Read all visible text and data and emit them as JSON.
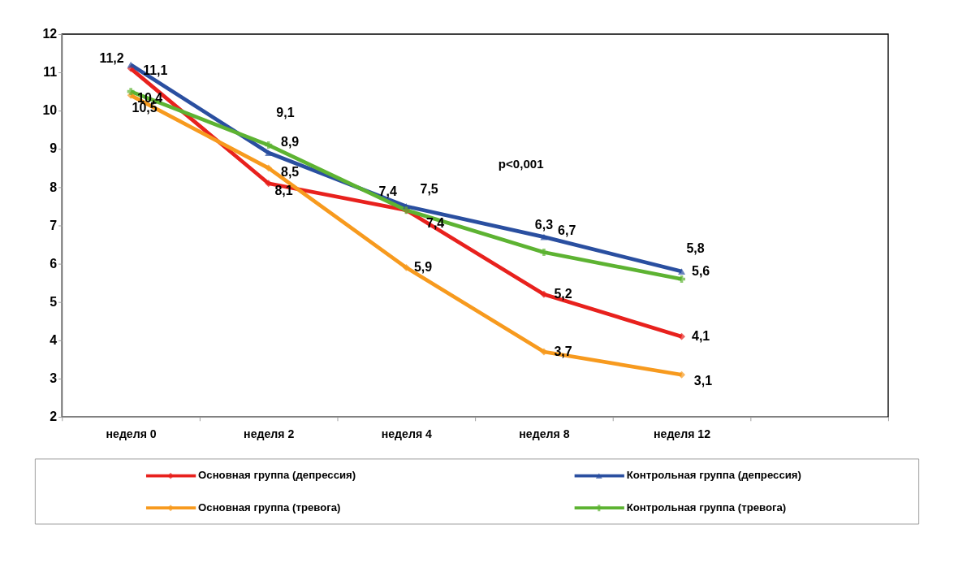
{
  "chart_data": {
    "type": "line",
    "categories": [
      "неделя 0",
      "неделя 2",
      "неделя 4",
      "неделя 8",
      "неделя 12",
      null
    ],
    "series": [
      {
        "name": "Основная группа (депрессия)",
        "color": "#e8211d",
        "marker": "diamond",
        "values": [
          11.1,
          8.1,
          7.4,
          5.2,
          4.1,
          null
        ],
        "value_labels": [
          "11,1",
          "8,1",
          "7,4",
          "5,2",
          "4,1",
          null
        ]
      },
      {
        "name": "Контрольная группа (депрессия)",
        "color": "#2a4fa0",
        "marker": "triangle",
        "values": [
          11.2,
          8.9,
          7.5,
          6.7,
          5.8,
          null
        ],
        "value_labels": [
          "11,2",
          "8,9",
          "7,5",
          "6,7",
          "5,8",
          null
        ]
      },
      {
        "name": "Основная группа (тревога)",
        "color": "#f79a1e",
        "marker": "diamond",
        "values": [
          10.4,
          8.5,
          5.9,
          3.7,
          3.1,
          null
        ],
        "value_labels": [
          "10,4",
          "8,5",
          "5,9",
          "3,7",
          "3,1",
          null
        ]
      },
      {
        "name": "Контрольная группа (тревога)",
        "color": "#5db332",
        "marker": "cross",
        "values": [
          10.5,
          9.1,
          7.4,
          6.3,
          5.6,
          null
        ],
        "value_labels": [
          "10,5",
          "9,1",
          "7,4",
          "6,3",
          "5,6",
          null
        ]
      }
    ],
    "ylim": [
      2,
      12
    ],
    "yticks": [
      2,
      3,
      4,
      5,
      6,
      7,
      8,
      9,
      10,
      11,
      12
    ],
    "grid": false,
    "legend": "bottom",
    "line_style": "solid",
    "annotations": [
      "p<0,001"
    ]
  }
}
